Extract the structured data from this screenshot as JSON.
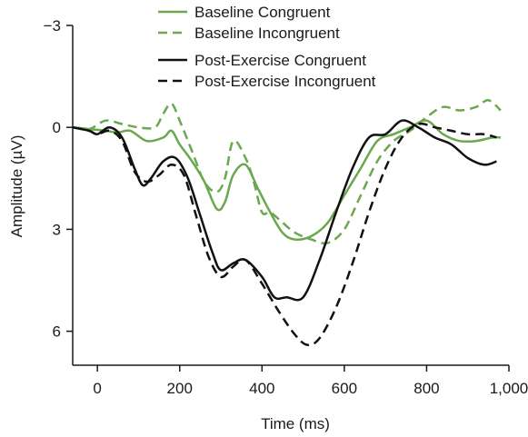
{
  "chart_data": {
    "type": "line",
    "xlabel": "Time (ms)",
    "ylabel": "Amplitude (µV)",
    "xlim": [
      -60,
      1000
    ],
    "ylim": [
      -3,
      7
    ],
    "y_inverted": true,
    "grid": false,
    "legend_position": "top-center",
    "x_ticks": [
      0,
      200,
      400,
      600,
      800,
      1000
    ],
    "x_tick_labels": [
      "0",
      "200",
      "400",
      "600",
      "800",
      "1,000"
    ],
    "y_ticks": [
      -3,
      0,
      3,
      6
    ],
    "y_tick_labels": [
      "−3",
      "0",
      "3",
      "6"
    ],
    "series": [
      {
        "name": "Baseline Congruent",
        "color": "#6aa84f",
        "dash": "solid",
        "x": [
          -60,
          -20,
          20,
          50,
          80,
          120,
          160,
          180,
          200,
          230,
          260,
          290,
          310,
          330,
          360,
          390,
          420,
          450,
          480,
          520,
          560,
          600,
          640,
          680,
          720,
          760,
          800,
          840,
          880,
          920,
          960,
          980
        ],
        "y": [
          0.0,
          0.05,
          0.1,
          0.15,
          0.1,
          0.4,
          0.3,
          0.1,
          0.5,
          1.0,
          1.6,
          2.4,
          2.2,
          1.4,
          1.1,
          1.8,
          2.5,
          3.1,
          3.3,
          3.2,
          2.8,
          2.0,
          1.2,
          0.4,
          0.2,
          0.0,
          -0.2,
          0.2,
          0.4,
          0.4,
          0.3,
          0.3
        ]
      },
      {
        "name": "Baseline Incongruent",
        "color": "#6aa84f",
        "dash": "dashed",
        "x": [
          -60,
          -20,
          20,
          60,
          100,
          140,
          160,
          180,
          200,
          230,
          260,
          290,
          310,
          330,
          360,
          380,
          400,
          420,
          450,
          480,
          520,
          560,
          600,
          640,
          680,
          720,
          760,
          800,
          840,
          880,
          920,
          950,
          980
        ],
        "y": [
          0.0,
          0.05,
          -0.2,
          -0.1,
          0.0,
          0.0,
          -0.4,
          -0.7,
          -0.2,
          0.7,
          1.6,
          1.9,
          1.5,
          0.4,
          0.9,
          1.6,
          2.5,
          2.5,
          2.8,
          3.1,
          3.3,
          3.4,
          3.0,
          2.0,
          1.0,
          0.4,
          0.1,
          -0.3,
          -0.6,
          -0.5,
          -0.6,
          -0.8,
          -0.5
        ]
      },
      {
        "name": "Post-Exercise Congruent",
        "color": "#111111",
        "dash": "solid",
        "x": [
          -60,
          -20,
          0,
          30,
          60,
          90,
          110,
          130,
          160,
          190,
          220,
          250,
          280,
          300,
          330,
          360,
          400,
          430,
          460,
          500,
          540,
          580,
          620,
          660,
          700,
          740,
          780,
          820,
          860,
          900,
          940,
          970
        ],
        "y": [
          0.0,
          0.1,
          0.2,
          0.0,
          0.3,
          1.2,
          1.7,
          1.5,
          1.0,
          0.9,
          1.5,
          2.6,
          3.7,
          4.2,
          4.0,
          3.9,
          4.4,
          5.0,
          5.0,
          5.0,
          3.9,
          2.5,
          1.2,
          0.3,
          0.2,
          -0.2,
          0.0,
          0.3,
          0.5,
          0.9,
          1.1,
          1.0
        ]
      },
      {
        "name": "Post-Exercise Incongruent",
        "color": "#111111",
        "dash": "dashed",
        "x": [
          -60,
          -20,
          0,
          30,
          60,
          90,
          120,
          150,
          180,
          210,
          240,
          270,
          300,
          330,
          360,
          400,
          440,
          480,
          510,
          540,
          580,
          620,
          660,
          700,
          740,
          780,
          820,
          860,
          900,
          940,
          970
        ],
        "y": [
          0.0,
          0.1,
          0.2,
          0.1,
          0.4,
          1.3,
          1.6,
          1.4,
          1.1,
          1.4,
          2.6,
          3.8,
          4.4,
          4.1,
          3.9,
          4.6,
          5.4,
          6.1,
          6.4,
          6.2,
          5.3,
          4.0,
          2.5,
          1.2,
          0.3,
          -0.1,
          0.0,
          0.1,
          0.2,
          0.2,
          0.3
        ]
      }
    ]
  }
}
